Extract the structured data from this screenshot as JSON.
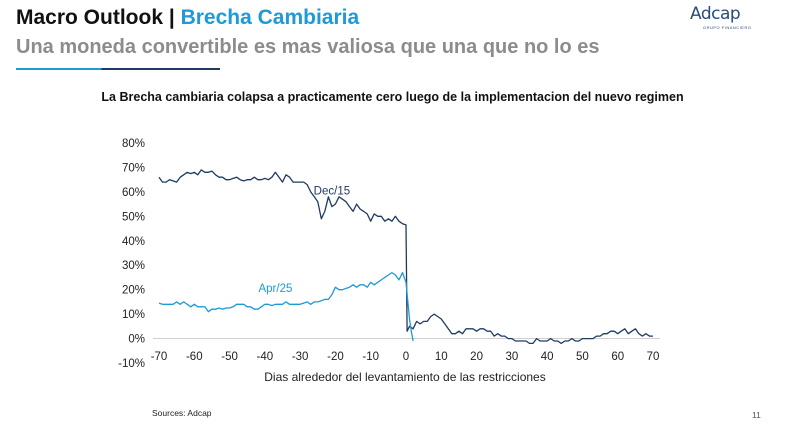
{
  "header": {
    "title_main": "Macro Outlook | ",
    "title_accent": "Brecha Cambiaria",
    "subtitle": "Una moneda convertible es mas valiosa que una que no lo es"
  },
  "logo": {
    "word": "Adcap",
    "tagline": "GRUPO FINANCIERO"
  },
  "colors": {
    "accent": "#1e9ad6",
    "navy": "#1f3b63",
    "grey_text": "#8c8c8c"
  },
  "chart_data": {
    "type": "line",
    "title": "La Brecha cambiaria colapsa a practicamente cero luego de la implementacion del nuevo regimen",
    "xlabel": "Dias alrededor del levantamiento de las restricciones",
    "ylabel": "",
    "xlim": [
      -72,
      72
    ],
    "ylim": [
      -10,
      80
    ],
    "x_ticks": [
      -70,
      -60,
      -50,
      -40,
      -30,
      -20,
      -10,
      0,
      10,
      20,
      30,
      40,
      50,
      60,
      70
    ],
    "y_ticks": [
      -10,
      0,
      10,
      20,
      30,
      40,
      50,
      60,
      70,
      80
    ],
    "y_tick_labels": [
      "-10%",
      "0%",
      "10%",
      "20%",
      "30%",
      "40%",
      "50%",
      "60%",
      "70%",
      "80%"
    ],
    "grid": false,
    "legend": "none",
    "annotations": [
      {
        "text": "Dec/15",
        "series": "Dec/15",
        "x": -21,
        "y": 59
      },
      {
        "text": "Apr/25",
        "series": "Apr/25",
        "x": -37,
        "y": 19
      }
    ],
    "series": [
      {
        "name": "Dec/15",
        "color": "#1f3b63",
        "points": [
          [
            -70,
            66
          ],
          [
            -69,
            64
          ],
          [
            -68,
            64
          ],
          [
            -67,
            65
          ],
          [
            -66,
            64.5
          ],
          [
            -65,
            64
          ],
          [
            -64,
            66
          ],
          [
            -63,
            67
          ],
          [
            -62,
            68
          ],
          [
            -61,
            67.5
          ],
          [
            -60,
            68
          ],
          [
            -59,
            67
          ],
          [
            -58,
            69
          ],
          [
            -57,
            68
          ],
          [
            -56,
            68
          ],
          [
            -55,
            68.5
          ],
          [
            -54,
            67
          ],
          [
            -53,
            66
          ],
          [
            -52,
            66
          ],
          [
            -51,
            65
          ],
          [
            -50,
            65
          ],
          [
            -49,
            65.5
          ],
          [
            -48,
            66
          ],
          [
            -47,
            65
          ],
          [
            -46,
            64.5
          ],
          [
            -45,
            65
          ],
          [
            -44,
            65
          ],
          [
            -43,
            66
          ],
          [
            -42,
            65
          ],
          [
            -41,
            65
          ],
          [
            -40,
            65.5
          ],
          [
            -39,
            65
          ],
          [
            -38,
            66
          ],
          [
            -37,
            68
          ],
          [
            -36,
            66
          ],
          [
            -35,
            64
          ],
          [
            -34,
            67
          ],
          [
            -33,
            66
          ],
          [
            -32,
            64
          ],
          [
            -31,
            64
          ],
          [
            -30,
            64
          ],
          [
            -29,
            64
          ],
          [
            -28,
            63
          ],
          [
            -27,
            60
          ],
          [
            -26,
            58
          ],
          [
            -25,
            56
          ],
          [
            -24,
            49
          ],
          [
            -23,
            52
          ],
          [
            -22,
            58
          ],
          [
            -21,
            54
          ],
          [
            -20,
            55
          ],
          [
            -19,
            58
          ],
          [
            -18,
            57
          ],
          [
            -17,
            56
          ],
          [
            -16,
            54
          ],
          [
            -15,
            52
          ],
          [
            -14,
            55
          ],
          [
            -13,
            53
          ],
          [
            -12,
            52
          ],
          [
            -11,
            51
          ],
          [
            -10,
            48
          ],
          [
            -9,
            51
          ],
          [
            -8,
            50
          ],
          [
            -7,
            50
          ],
          [
            -6,
            48
          ],
          [
            -5,
            49
          ],
          [
            -4,
            48
          ],
          [
            -3,
            50
          ],
          [
            -2,
            48
          ],
          [
            -1,
            47
          ],
          [
            0,
            46.5
          ],
          [
            0.3,
            3
          ],
          [
            1,
            5
          ],
          [
            2,
            4
          ],
          [
            3,
            7
          ],
          [
            4,
            6
          ],
          [
            5,
            7
          ],
          [
            6,
            7
          ],
          [
            7,
            9
          ],
          [
            8,
            10
          ],
          [
            9,
            9
          ],
          [
            10,
            8
          ],
          [
            11,
            6
          ],
          [
            12,
            4
          ],
          [
            13,
            2
          ],
          [
            14,
            2
          ],
          [
            15,
            3
          ],
          [
            16,
            2
          ],
          [
            17,
            4
          ],
          [
            18,
            4
          ],
          [
            19,
            4
          ],
          [
            20,
            3
          ],
          [
            21,
            4
          ],
          [
            22,
            4
          ],
          [
            23,
            3
          ],
          [
            24,
            3
          ],
          [
            25,
            1
          ],
          [
            26,
            2
          ],
          [
            27,
            1
          ],
          [
            28,
            1
          ],
          [
            29,
            0
          ],
          [
            30,
            0
          ],
          [
            31,
            -1
          ],
          [
            32,
            -1
          ],
          [
            33,
            -1
          ],
          [
            34,
            -1
          ],
          [
            35,
            -2
          ],
          [
            36,
            -2
          ],
          [
            37,
            0
          ],
          [
            38,
            -1
          ],
          [
            39,
            -1
          ],
          [
            40,
            -1
          ],
          [
            41,
            0
          ],
          [
            42,
            -1
          ],
          [
            43,
            -1
          ],
          [
            44,
            -2
          ],
          [
            45,
            -1
          ],
          [
            46,
            -1
          ],
          [
            47,
            0
          ],
          [
            48,
            -1
          ],
          [
            49,
            -1
          ],
          [
            50,
            0
          ],
          [
            51,
            0
          ],
          [
            52,
            0
          ],
          [
            53,
            0
          ],
          [
            54,
            1
          ],
          [
            55,
            1
          ],
          [
            56,
            2
          ],
          [
            57,
            2
          ],
          [
            58,
            3
          ],
          [
            59,
            3
          ],
          [
            60,
            2
          ],
          [
            61,
            3
          ],
          [
            62,
            4
          ],
          [
            63,
            2
          ],
          [
            64,
            3
          ],
          [
            65,
            4
          ],
          [
            66,
            2
          ],
          [
            67,
            1
          ],
          [
            68,
            2
          ],
          [
            69,
            1
          ],
          [
            70,
            1
          ]
        ]
      },
      {
        "name": "Apr/25",
        "color": "#1e9ad6",
        "points": [
          [
            -70,
            14.5
          ],
          [
            -69,
            14
          ],
          [
            -68,
            14
          ],
          [
            -67,
            14
          ],
          [
            -66,
            14
          ],
          [
            -65,
            15
          ],
          [
            -64,
            14
          ],
          [
            -63,
            15
          ],
          [
            -62,
            14
          ],
          [
            -61,
            13
          ],
          [
            -60,
            14
          ],
          [
            -59,
            13
          ],
          [
            -58,
            13
          ],
          [
            -57,
            13
          ],
          [
            -56,
            11
          ],
          [
            -55,
            12
          ],
          [
            -54,
            12
          ],
          [
            -53,
            12.5
          ],
          [
            -52,
            12
          ],
          [
            -51,
            12.5
          ],
          [
            -50,
            12.5
          ],
          [
            -49,
            13
          ],
          [
            -48,
            14
          ],
          [
            -47,
            14
          ],
          [
            -46,
            14
          ],
          [
            -45,
            13
          ],
          [
            -44,
            13
          ],
          [
            -43,
            12
          ],
          [
            -42,
            12
          ],
          [
            -41,
            13
          ],
          [
            -40,
            14
          ],
          [
            -39,
            14
          ],
          [
            -38,
            13.5
          ],
          [
            -37,
            14
          ],
          [
            -36,
            14
          ],
          [
            -35,
            14
          ],
          [
            -34,
            15
          ],
          [
            -33,
            14
          ],
          [
            -32,
            14
          ],
          [
            -31,
            14
          ],
          [
            -30,
            14
          ],
          [
            -29,
            14.5
          ],
          [
            -28,
            15
          ],
          [
            -27,
            14
          ],
          [
            -26,
            15
          ],
          [
            -25,
            15
          ],
          [
            -24,
            15.5
          ],
          [
            -23,
            16
          ],
          [
            -22,
            16
          ],
          [
            -21,
            18
          ],
          [
            -20,
            21
          ],
          [
            -19,
            20
          ],
          [
            -18,
            20
          ],
          [
            -17,
            20.5
          ],
          [
            -16,
            21
          ],
          [
            -15,
            22
          ],
          [
            -14,
            21
          ],
          [
            -13,
            22
          ],
          [
            -12,
            22
          ],
          [
            -11,
            21
          ],
          [
            -10,
            23
          ],
          [
            -9,
            22
          ],
          [
            -8,
            23
          ],
          [
            -7,
            24
          ],
          [
            -6,
            25
          ],
          [
            -5,
            26
          ],
          [
            -4,
            27
          ],
          [
            -3,
            26
          ],
          [
            -2,
            24
          ],
          [
            -1,
            27
          ],
          [
            0,
            23
          ],
          [
            1,
            8
          ],
          [
            1.5,
            3
          ],
          [
            2,
            -1
          ]
        ]
      }
    ]
  },
  "footer": {
    "source": "Sources: Adcap",
    "page": "11"
  }
}
